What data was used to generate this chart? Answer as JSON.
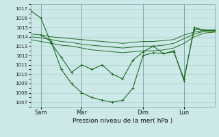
{
  "xlabel": "Pression niveau de la mer( hPa )",
  "ylim": [
    1006.5,
    1017.5
  ],
  "yticks": [
    1007,
    1008,
    1009,
    1010,
    1011,
    1012,
    1013,
    1014,
    1015,
    1016,
    1017
  ],
  "bg_color": "#cce8e8",
  "line_color": "#1e6b1e",
  "grid_color": "#b0d0d0",
  "xlim": [
    0,
    18
  ],
  "xtick_positions": [
    1,
    5,
    11,
    15
  ],
  "xtick_labels": [
    "Sam",
    "Mar",
    "Dim",
    "Lun"
  ],
  "vline_positions": [
    1,
    5,
    11,
    15
  ],
  "series_zigzag1_x": [
    0,
    1,
    2,
    3,
    4,
    5,
    6,
    7,
    8,
    9,
    10,
    11,
    12,
    13,
    14,
    15,
    16,
    17,
    18
  ],
  "series_zigzag1_y": [
    1016.8,
    1016.0,
    1013.3,
    1011.8,
    1010.2,
    1011.0,
    1010.5,
    1011.0,
    1010.0,
    1009.5,
    1011.5,
    1012.4,
    1013.0,
    1012.2,
    1012.5,
    1009.3,
    1015.0,
    1014.7,
    1014.7
  ],
  "series_zigzag2_x": [
    1,
    2,
    3,
    4,
    5,
    6,
    7,
    8,
    9,
    10,
    11,
    12,
    13,
    14,
    15,
    16,
    17,
    18
  ],
  "series_zigzag2_y": [
    1014.2,
    1013.5,
    1010.5,
    1009.0,
    1008.0,
    1007.5,
    1007.2,
    1007.0,
    1007.2,
    1008.5,
    1012.0,
    1012.3,
    1012.2,
    1012.4,
    1009.5,
    1014.8,
    1014.7,
    1014.7
  ],
  "series_flat1_x": [
    0,
    1,
    2,
    3,
    4,
    5,
    6,
    7,
    8,
    9,
    10,
    11,
    12,
    13,
    14,
    15,
    16,
    17,
    18
  ],
  "series_flat1_y": [
    1014.3,
    1014.2,
    1014.0,
    1013.9,
    1013.8,
    1013.7,
    1013.6,
    1013.5,
    1013.4,
    1013.3,
    1013.4,
    1013.5,
    1013.5,
    1013.6,
    1013.7,
    1014.2,
    1014.5,
    1014.7,
    1014.7
  ],
  "series_flat2_x": [
    0,
    1,
    2,
    3,
    4,
    5,
    6,
    7,
    8,
    9,
    10,
    11,
    12,
    13,
    14,
    15,
    16,
    17,
    18
  ],
  "series_flat2_y": [
    1014.0,
    1013.9,
    1013.7,
    1013.5,
    1013.4,
    1013.2,
    1013.1,
    1013.0,
    1012.9,
    1012.8,
    1012.9,
    1013.0,
    1013.0,
    1013.1,
    1013.3,
    1013.8,
    1014.3,
    1014.6,
    1014.6
  ],
  "series_flat3_x": [
    0,
    1,
    2,
    3,
    4,
    5,
    6,
    7,
    8,
    9,
    10,
    11,
    12,
    13,
    14,
    15,
    16,
    17,
    18
  ],
  "series_flat3_y": [
    1013.7,
    1013.5,
    1013.3,
    1013.1,
    1013.0,
    1012.8,
    1012.6,
    1012.5,
    1012.4,
    1012.3,
    1012.4,
    1012.5,
    1012.5,
    1012.6,
    1012.8,
    1013.3,
    1014.0,
    1014.4,
    1014.5
  ]
}
